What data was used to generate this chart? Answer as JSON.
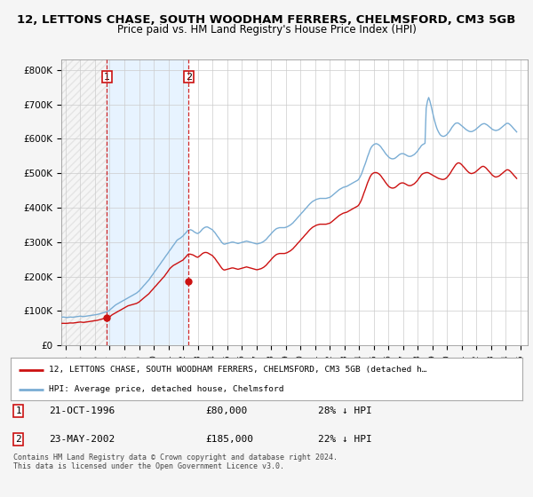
{
  "title": "12, LETTONS CHASE, SOUTH WOODHAM FERRERS, CHELMSFORD, CM3 5GB",
  "subtitle": "Price paid vs. HM Land Registry's House Price Index (HPI)",
  "ylabel_ticks": [
    "£0",
    "£100K",
    "£200K",
    "£300K",
    "£400K",
    "£500K",
    "£600K",
    "£700K",
    "£800K"
  ],
  "ylabel_values": [
    0,
    100000,
    200000,
    300000,
    400000,
    500000,
    600000,
    700000,
    800000
  ],
  "ylim": [
    0,
    830000
  ],
  "xlim_start": 1993.7,
  "xlim_end": 2025.5,
  "hpi_color": "#7aadd4",
  "price_color": "#cc1111",
  "background_color": "#f5f5f5",
  "plot_bg_color": "#ffffff",
  "grid_color": "#cccccc",
  "sale1_x": 1996.81,
  "sale1_y": 80000,
  "sale2_x": 2002.39,
  "sale2_y": 185000,
  "sale1_date": "21-OCT-1996",
  "sale1_price": "£80,000",
  "sale1_hpi": "28% ↓ HPI",
  "sale2_date": "23-MAY-2002",
  "sale2_price": "£185,000",
  "sale2_hpi": "22% ↓ HPI",
  "legend_line1": "12, LETTONS CHASE, SOUTH WOODHAM FERRERS, CHELMSFORD, CM3 5GB (detached h…",
  "legend_line2": "HPI: Average price, detached house, Chelmsford",
  "footnote": "Contains HM Land Registry data © Crown copyright and database right 2024.\nThis data is licensed under the Open Government Licence v3.0.",
  "hpi_x": [
    1993.75,
    1993.83,
    1993.92,
    1994.0,
    1994.08,
    1994.17,
    1994.25,
    1994.33,
    1994.42,
    1994.5,
    1994.58,
    1994.67,
    1994.75,
    1994.83,
    1994.92,
    1995.0,
    1995.08,
    1995.17,
    1995.25,
    1995.33,
    1995.42,
    1995.5,
    1995.58,
    1995.67,
    1995.75,
    1995.83,
    1995.92,
    1996.0,
    1996.08,
    1996.17,
    1996.25,
    1996.33,
    1996.42,
    1996.5,
    1996.58,
    1996.67,
    1996.75,
    1996.83,
    1996.92,
    1997.0,
    1997.08,
    1997.17,
    1997.25,
    1997.33,
    1997.42,
    1997.5,
    1997.58,
    1997.67,
    1997.75,
    1997.83,
    1997.92,
    1998.0,
    1998.08,
    1998.17,
    1998.25,
    1998.33,
    1998.42,
    1998.5,
    1998.58,
    1998.67,
    1998.75,
    1998.83,
    1998.92,
    1999.0,
    1999.08,
    1999.17,
    1999.25,
    1999.33,
    1999.42,
    1999.5,
    1999.58,
    1999.67,
    1999.75,
    1999.83,
    1999.92,
    2000.0,
    2000.08,
    2000.17,
    2000.25,
    2000.33,
    2000.42,
    2000.5,
    2000.58,
    2000.67,
    2000.75,
    2000.83,
    2000.92,
    2001.0,
    2001.08,
    2001.17,
    2001.25,
    2001.33,
    2001.42,
    2001.5,
    2001.58,
    2001.67,
    2001.75,
    2001.83,
    2001.92,
    2002.0,
    2002.08,
    2002.17,
    2002.25,
    2002.33,
    2002.42,
    2002.5,
    2002.58,
    2002.67,
    2002.75,
    2002.83,
    2002.92,
    2003.0,
    2003.08,
    2003.17,
    2003.25,
    2003.33,
    2003.42,
    2003.5,
    2003.58,
    2003.67,
    2003.75,
    2003.83,
    2003.92,
    2004.0,
    2004.08,
    2004.17,
    2004.25,
    2004.33,
    2004.42,
    2004.5,
    2004.58,
    2004.67,
    2004.75,
    2004.83,
    2004.92,
    2005.0,
    2005.08,
    2005.17,
    2005.25,
    2005.33,
    2005.42,
    2005.5,
    2005.58,
    2005.67,
    2005.75,
    2005.83,
    2005.92,
    2006.0,
    2006.08,
    2006.17,
    2006.25,
    2006.33,
    2006.42,
    2006.5,
    2006.58,
    2006.67,
    2006.75,
    2006.83,
    2006.92,
    2007.0,
    2007.08,
    2007.17,
    2007.25,
    2007.33,
    2007.42,
    2007.5,
    2007.58,
    2007.67,
    2007.75,
    2007.83,
    2007.92,
    2008.0,
    2008.08,
    2008.17,
    2008.25,
    2008.33,
    2008.42,
    2008.5,
    2008.58,
    2008.67,
    2008.75,
    2008.83,
    2008.92,
    2009.0,
    2009.08,
    2009.17,
    2009.25,
    2009.33,
    2009.42,
    2009.5,
    2009.58,
    2009.67,
    2009.75,
    2009.83,
    2009.92,
    2010.0,
    2010.08,
    2010.17,
    2010.25,
    2010.33,
    2010.42,
    2010.5,
    2010.58,
    2010.67,
    2010.75,
    2010.83,
    2010.92,
    2011.0,
    2011.08,
    2011.17,
    2011.25,
    2011.33,
    2011.42,
    2011.5,
    2011.58,
    2011.67,
    2011.75,
    2011.83,
    2011.92,
    2012.0,
    2012.08,
    2012.17,
    2012.25,
    2012.33,
    2012.42,
    2012.5,
    2012.58,
    2012.67,
    2012.75,
    2012.83,
    2012.92,
    2013.0,
    2013.08,
    2013.17,
    2013.25,
    2013.33,
    2013.42,
    2013.5,
    2013.58,
    2013.67,
    2013.75,
    2013.83,
    2013.92,
    2014.0,
    2014.08,
    2014.17,
    2014.25,
    2014.33,
    2014.42,
    2014.5,
    2014.58,
    2014.67,
    2014.75,
    2014.83,
    2014.92,
    2015.0,
    2015.08,
    2015.17,
    2015.25,
    2015.33,
    2015.42,
    2015.5,
    2015.58,
    2015.67,
    2015.75,
    2015.83,
    2015.92,
    2016.0,
    2016.08,
    2016.17,
    2016.25,
    2016.33,
    2016.42,
    2016.5,
    2016.58,
    2016.67,
    2016.75,
    2016.83,
    2016.92,
    2017.0,
    2017.08,
    2017.17,
    2017.25,
    2017.33,
    2017.42,
    2017.5,
    2017.58,
    2017.67,
    2017.75,
    2017.83,
    2017.92,
    2018.0,
    2018.08,
    2018.17,
    2018.25,
    2018.33,
    2018.42,
    2018.5,
    2018.58,
    2018.67,
    2018.75,
    2018.83,
    2018.92,
    2019.0,
    2019.08,
    2019.17,
    2019.25,
    2019.33,
    2019.42,
    2019.5,
    2019.58,
    2019.67,
    2019.75,
    2019.83,
    2019.92,
    2020.0,
    2020.08,
    2020.17,
    2020.25,
    2020.33,
    2020.42,
    2020.5,
    2020.58,
    2020.67,
    2020.75,
    2020.83,
    2020.92,
    2021.0,
    2021.08,
    2021.17,
    2021.25,
    2021.33,
    2021.42,
    2021.5,
    2021.58,
    2021.67,
    2021.75,
    2021.83,
    2021.92,
    2022.0,
    2022.08,
    2022.17,
    2022.25,
    2022.33,
    2022.42,
    2022.5,
    2022.58,
    2022.67,
    2022.75,
    2022.83,
    2022.92,
    2023.0,
    2023.08,
    2023.17,
    2023.25,
    2023.33,
    2023.42,
    2023.5,
    2023.58,
    2023.67,
    2023.75,
    2023.83,
    2023.92,
    2024.0,
    2024.08,
    2024.17,
    2024.25,
    2024.33,
    2024.42,
    2024.5,
    2024.58,
    2024.67,
    2024.75
  ],
  "hpi_y": [
    82000,
    82500,
    82000,
    81500,
    81000,
    81500,
    82000,
    82500,
    82000,
    82000,
    82500,
    83000,
    83500,
    84000,
    84500,
    85000,
    84500,
    84000,
    84000,
    84500,
    85000,
    85500,
    86000,
    86500,
    87000,
    87500,
    88000,
    88500,
    89000,
    90000,
    91000,
    92000,
    93000,
    94000,
    95000,
    96000,
    97000,
    98000,
    100000,
    103000,
    106000,
    109000,
    112000,
    115000,
    118000,
    120000,
    122000,
    124000,
    126000,
    128000,
    130000,
    132000,
    134000,
    136000,
    138000,
    140000,
    142000,
    144000,
    146000,
    148000,
    150000,
    152000,
    155000,
    158000,
    162000,
    166000,
    170000,
    174000,
    178000,
    182000,
    186000,
    190000,
    195000,
    200000,
    205000,
    210000,
    215000,
    220000,
    225000,
    230000,
    235000,
    240000,
    245000,
    250000,
    255000,
    260000,
    265000,
    270000,
    275000,
    280000,
    285000,
    290000,
    295000,
    300000,
    305000,
    308000,
    310000,
    312000,
    315000,
    318000,
    322000,
    326000,
    330000,
    334000,
    335000,
    336000,
    335000,
    333000,
    330000,
    328000,
    326000,
    325000,
    327000,
    330000,
    334000,
    338000,
    341000,
    343000,
    344000,
    344000,
    342000,
    340000,
    338000,
    336000,
    332000,
    328000,
    323000,
    318000,
    313000,
    308000,
    303000,
    298000,
    295000,
    294000,
    295000,
    296000,
    297000,
    298000,
    299000,
    300000,
    300000,
    299000,
    298000,
    297000,
    296000,
    297000,
    298000,
    299000,
    300000,
    301000,
    302000,
    303000,
    302000,
    301000,
    300000,
    299000,
    298000,
    297000,
    296000,
    295000,
    295000,
    296000,
    297000,
    298000,
    300000,
    302000,
    305000,
    308000,
    312000,
    316000,
    320000,
    324000,
    328000,
    332000,
    335000,
    338000,
    340000,
    341000,
    342000,
    342000,
    342000,
    342000,
    342000,
    343000,
    344000,
    346000,
    348000,
    350000,
    353000,
    356000,
    360000,
    364000,
    368000,
    372000,
    376000,
    380000,
    384000,
    388000,
    392000,
    396000,
    400000,
    404000,
    408000,
    412000,
    415000,
    418000,
    420000,
    422000,
    424000,
    425000,
    426000,
    427000,
    427000,
    427000,
    427000,
    427000,
    427000,
    428000,
    429000,
    430000,
    432000,
    435000,
    438000,
    441000,
    444000,
    447000,
    450000,
    453000,
    455000,
    457000,
    459000,
    460000,
    461000,
    462000,
    464000,
    466000,
    468000,
    470000,
    472000,
    474000,
    476000,
    478000,
    480000,
    484000,
    490000,
    498000,
    507000,
    517000,
    527000,
    537000,
    548000,
    558000,
    568000,
    575000,
    580000,
    583000,
    585000,
    586000,
    585000,
    583000,
    580000,
    576000,
    571000,
    566000,
    561000,
    556000,
    552000,
    548000,
    545000,
    543000,
    542000,
    542000,
    543000,
    545000,
    548000,
    551000,
    554000,
    556000,
    557000,
    557000,
    556000,
    554000,
    552000,
    550000,
    549000,
    549000,
    550000,
    552000,
    554000,
    557000,
    561000,
    565000,
    570000,
    575000,
    580000,
    583000,
    585000,
    587000,
    689000,
    710000,
    720000,
    710000,
    695000,
    680000,
    665000,
    650000,
    638000,
    628000,
    620000,
    614000,
    610000,
    608000,
    607000,
    608000,
    610000,
    613000,
    617000,
    622000,
    627000,
    633000,
    638000,
    642000,
    645000,
    646000,
    646000,
    644000,
    641000,
    638000,
    635000,
    632000,
    629000,
    626000,
    624000,
    622000,
    621000,
    621000,
    622000,
    624000,
    626000,
    629000,
    632000,
    635000,
    638000,
    641000,
    643000,
    644000,
    644000,
    642000,
    640000,
    637000,
    634000,
    631000,
    628000,
    626000,
    625000,
    624000,
    625000,
    626000,
    628000,
    631000,
    634000,
    637000,
    640000,
    643000,
    645000,
    645000,
    643000,
    640000,
    636000,
    632000,
    628000,
    624000,
    620000
  ],
  "price_x": [
    1993.75,
    1993.83,
    1993.92,
    1994.0,
    1994.08,
    1994.17,
    1994.25,
    1994.33,
    1994.42,
    1994.5,
    1994.58,
    1994.67,
    1994.75,
    1994.83,
    1994.92,
    1995.0,
    1995.08,
    1995.17,
    1995.25,
    1995.33,
    1995.42,
    1995.5,
    1995.58,
    1995.67,
    1995.75,
    1995.83,
    1995.92,
    1996.0,
    1996.08,
    1996.17,
    1996.25,
    1996.33,
    1996.42,
    1996.5,
    1996.58,
    1996.67,
    1996.75,
    1996.83,
    1996.92,
    1997.0,
    1997.08,
    1997.17,
    1997.25,
    1997.33,
    1997.42,
    1997.5,
    1997.58,
    1997.67,
    1997.75,
    1997.83,
    1997.92,
    1998.0,
    1998.08,
    1998.17,
    1998.25,
    1998.33,
    1998.42,
    1998.5,
    1998.58,
    1998.67,
    1998.75,
    1998.83,
    1998.92,
    1999.0,
    1999.08,
    1999.17,
    1999.25,
    1999.33,
    1999.42,
    1999.5,
    1999.58,
    1999.67,
    1999.75,
    1999.83,
    1999.92,
    2000.0,
    2000.08,
    2000.17,
    2000.25,
    2000.33,
    2000.42,
    2000.5,
    2000.58,
    2000.67,
    2000.75,
    2000.83,
    2000.92,
    2001.0,
    2001.08,
    2001.17,
    2001.25,
    2001.33,
    2001.42,
    2001.5,
    2001.58,
    2001.67,
    2001.75,
    2001.83,
    2001.92,
    2002.0,
    2002.08,
    2002.17,
    2002.25,
    2002.33,
    2002.42,
    2002.5,
    2002.58,
    2002.67,
    2002.75,
    2002.83,
    2002.92,
    2003.0,
    2003.08,
    2003.17,
    2003.25,
    2003.33,
    2003.42,
    2003.5,
    2003.58,
    2003.67,
    2003.75,
    2003.83,
    2003.92,
    2004.0,
    2004.08,
    2004.17,
    2004.25,
    2004.33,
    2004.42,
    2004.5,
    2004.58,
    2004.67,
    2004.75,
    2004.83,
    2004.92,
    2005.0,
    2005.08,
    2005.17,
    2005.25,
    2005.33,
    2005.42,
    2005.5,
    2005.58,
    2005.67,
    2005.75,
    2005.83,
    2005.92,
    2006.0,
    2006.08,
    2006.17,
    2006.25,
    2006.33,
    2006.42,
    2006.5,
    2006.58,
    2006.67,
    2006.75,
    2006.83,
    2006.92,
    2007.0,
    2007.08,
    2007.17,
    2007.25,
    2007.33,
    2007.42,
    2007.5,
    2007.58,
    2007.67,
    2007.75,
    2007.83,
    2007.92,
    2008.0,
    2008.08,
    2008.17,
    2008.25,
    2008.33,
    2008.42,
    2008.5,
    2008.58,
    2008.67,
    2008.75,
    2008.83,
    2008.92,
    2009.0,
    2009.08,
    2009.17,
    2009.25,
    2009.33,
    2009.42,
    2009.5,
    2009.58,
    2009.67,
    2009.75,
    2009.83,
    2009.92,
    2010.0,
    2010.08,
    2010.17,
    2010.25,
    2010.33,
    2010.42,
    2010.5,
    2010.58,
    2010.67,
    2010.75,
    2010.83,
    2010.92,
    2011.0,
    2011.08,
    2011.17,
    2011.25,
    2011.33,
    2011.42,
    2011.5,
    2011.58,
    2011.67,
    2011.75,
    2011.83,
    2011.92,
    2012.0,
    2012.08,
    2012.17,
    2012.25,
    2012.33,
    2012.42,
    2012.5,
    2012.58,
    2012.67,
    2012.75,
    2012.83,
    2012.92,
    2013.0,
    2013.08,
    2013.17,
    2013.25,
    2013.33,
    2013.42,
    2013.5,
    2013.58,
    2013.67,
    2013.75,
    2013.83,
    2013.92,
    2014.0,
    2014.08,
    2014.17,
    2014.25,
    2014.33,
    2014.42,
    2014.5,
    2014.58,
    2014.67,
    2014.75,
    2014.83,
    2014.92,
    2015.0,
    2015.08,
    2015.17,
    2015.25,
    2015.33,
    2015.42,
    2015.5,
    2015.58,
    2015.67,
    2015.75,
    2015.83,
    2015.92,
    2016.0,
    2016.08,
    2016.17,
    2016.25,
    2016.33,
    2016.42,
    2016.5,
    2016.58,
    2016.67,
    2016.75,
    2016.83,
    2016.92,
    2017.0,
    2017.08,
    2017.17,
    2017.25,
    2017.33,
    2017.42,
    2017.5,
    2017.58,
    2017.67,
    2017.75,
    2017.83,
    2017.92,
    2018.0,
    2018.08,
    2018.17,
    2018.25,
    2018.33,
    2018.42,
    2018.5,
    2018.58,
    2018.67,
    2018.75,
    2018.83,
    2018.92,
    2019.0,
    2019.08,
    2019.17,
    2019.25,
    2019.33,
    2019.42,
    2019.5,
    2019.58,
    2019.67,
    2019.75,
    2019.83,
    2019.92,
    2020.0,
    2020.08,
    2020.17,
    2020.25,
    2020.33,
    2020.42,
    2020.5,
    2020.58,
    2020.67,
    2020.75,
    2020.83,
    2020.92,
    2021.0,
    2021.08,
    2021.17,
    2021.25,
    2021.33,
    2021.42,
    2021.5,
    2021.58,
    2021.67,
    2021.75,
    2021.83,
    2021.92,
    2022.0,
    2022.08,
    2022.17,
    2022.25,
    2022.33,
    2022.42,
    2022.5,
    2022.58,
    2022.67,
    2022.75,
    2022.83,
    2022.92,
    2023.0,
    2023.08,
    2023.17,
    2023.25,
    2023.33,
    2023.42,
    2023.5,
    2023.58,
    2023.67,
    2023.75,
    2023.83,
    2023.92,
    2024.0,
    2024.08,
    2024.17,
    2024.25,
    2024.33,
    2024.42,
    2024.5,
    2024.58,
    2024.67,
    2024.75
  ],
  "price_y": [
    64000,
    64200,
    64000,
    64000,
    64200,
    64500,
    65000,
    65200,
    65000,
    65000,
    65500,
    66000,
    66500,
    67000,
    67500,
    68000,
    67500,
    67000,
    67000,
    67500,
    68000,
    68500,
    69000,
    69500,
    70000,
    70500,
    71000,
    71500,
    72000,
    73000,
    74000,
    75000,
    76000,
    77000,
    78000,
    79000,
    79500,
    80000,
    81000,
    83000,
    86000,
    89000,
    91000,
    93000,
    95000,
    97000,
    99000,
    101000,
    103000,
    105000,
    107000,
    109000,
    111000,
    113000,
    115000,
    116000,
    117000,
    118000,
    119000,
    120000,
    121000,
    122000,
    124000,
    126000,
    129000,
    132000,
    135000,
    138000,
    141000,
    144000,
    147000,
    150000,
    154000,
    158000,
    162000,
    166000,
    170000,
    174000,
    178000,
    182000,
    186000,
    190000,
    194000,
    198000,
    202000,
    207000,
    212000,
    217000,
    222000,
    226000,
    229000,
    232000,
    234000,
    236000,
    238000,
    240000,
    242000,
    244000,
    246000,
    248000,
    252000,
    256000,
    260000,
    264000,
    265000,
    265000,
    264000,
    263000,
    261000,
    259000,
    257000,
    256000,
    258000,
    261000,
    264000,
    267000,
    269000,
    270000,
    270000,
    269000,
    267000,
    265000,
    263000,
    261000,
    257000,
    253000,
    248000,
    243000,
    238000,
    233000,
    228000,
    223000,
    220000,
    219000,
    220000,
    221000,
    222000,
    223000,
    224000,
    225000,
    225000,
    224000,
    223000,
    222000,
    221000,
    222000,
    223000,
    224000,
    225000,
    226000,
    227000,
    228000,
    227000,
    226000,
    225000,
    224000,
    223000,
    222000,
    221000,
    220000,
    220000,
    221000,
    222000,
    223000,
    225000,
    227000,
    230000,
    233000,
    237000,
    241000,
    245000,
    249000,
    253000,
    257000,
    260000,
    263000,
    265000,
    266000,
    267000,
    267000,
    267000,
    267000,
    267000,
    268000,
    269000,
    271000,
    273000,
    275000,
    278000,
    281000,
    285000,
    289000,
    293000,
    297000,
    301000,
    305000,
    309000,
    313000,
    317000,
    321000,
    325000,
    329000,
    333000,
    337000,
    340000,
    343000,
    345000,
    347000,
    349000,
    350000,
    351000,
    352000,
    352000,
    352000,
    352000,
    352000,
    352000,
    353000,
    354000,
    355000,
    357000,
    360000,
    363000,
    366000,
    369000,
    372000,
    375000,
    378000,
    380000,
    382000,
    384000,
    385000,
    386000,
    387000,
    389000,
    391000,
    393000,
    395000,
    397000,
    399000,
    401000,
    403000,
    405000,
    409000,
    415000,
    423000,
    432000,
    442000,
    452000,
    462000,
    472000,
    481000,
    489000,
    495000,
    499000,
    501000,
    502000,
    502000,
    501000,
    499000,
    496000,
    492000,
    487000,
    482000,
    477000,
    472000,
    467000,
    463000,
    460000,
    458000,
    457000,
    457000,
    458000,
    460000,
    463000,
    466000,
    469000,
    471000,
    472000,
    472000,
    471000,
    469000,
    467000,
    465000,
    464000,
    464000,
    465000,
    467000,
    469000,
    472000,
    476000,
    480000,
    485000,
    490000,
    495000,
    498000,
    500000,
    501000,
    502000,
    502000,
    501000,
    499000,
    497000,
    495000,
    493000,
    491000,
    489000,
    487000,
    485000,
    484000,
    483000,
    482000,
    482000,
    483000,
    485000,
    488000,
    492000,
    497000,
    502000,
    508000,
    514000,
    519000,
    524000,
    528000,
    530000,
    530000,
    528000,
    525000,
    521000,
    517000,
    513000,
    509000,
    505000,
    502000,
    500000,
    499000,
    500000,
    501000,
    503000,
    506000,
    509000,
    512000,
    515000,
    518000,
    520000,
    520000,
    518000,
    515000,
    511000,
    507000,
    503000,
    499000,
    495000,
    492000,
    490000,
    489000,
    490000,
    491000,
    493000,
    496000,
    499000,
    502000,
    505000,
    508000,
    510000,
    510000,
    508000,
    505000,
    501000,
    497000,
    493000,
    489000,
    485000
  ]
}
